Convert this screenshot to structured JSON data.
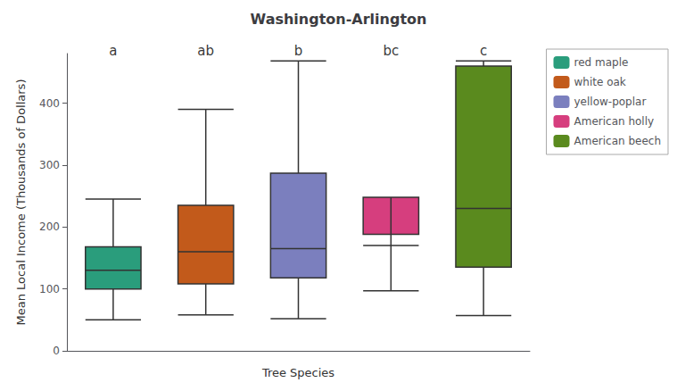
{
  "chart_data": {
    "type": "boxplot",
    "title": "Washington-Arlington",
    "x_label": "Tree Species",
    "y_label": "Mean Local Income (Thousands of Dollars)",
    "ylim": [
      0,
      480
    ],
    "yticks": [
      0,
      100,
      200,
      300,
      400
    ],
    "grid": false,
    "legend": "right",
    "tick_labels": "y",
    "boxes": [
      {
        "name": "red maple",
        "color": "#2a9d7c",
        "whislo": 50,
        "q1": 100,
        "med": 130,
        "q3": 168,
        "whishi": 245
      },
      {
        "name": "white oak",
        "color": "#c25a1b",
        "whislo": 58,
        "q1": 108,
        "med": 160,
        "q3": 235,
        "whishi": 390
      },
      {
        "name": "yellow-poplar",
        "color": "#7b7fbe",
        "whislo": 52,
        "q1": 118,
        "med": 165,
        "q3": 287,
        "whishi": 468
      },
      {
        "name": "American holly",
        "color": "#d63e7e",
        "whislo": 97,
        "q1": 188,
        "med": 248,
        "q3": 248,
        "whishi": 170
      },
      {
        "name": "American beech",
        "color": "#5a8a1e",
        "whislo": 57,
        "q1": 135,
        "med": 230,
        "q3": 460,
        "whishi": 468
      }
    ],
    "annotations": [
      {
        "text": "a",
        "x": "red maple",
        "y": 470
      },
      {
        "text": "ab",
        "x": "white oak",
        "y": 470
      },
      {
        "text": "b",
        "x": "yellow-poplar",
        "y": 470
      },
      {
        "text": "bc",
        "x": "American holly",
        "y": 470
      },
      {
        "text": "c",
        "x": "American beech",
        "y": 470
      }
    ]
  }
}
